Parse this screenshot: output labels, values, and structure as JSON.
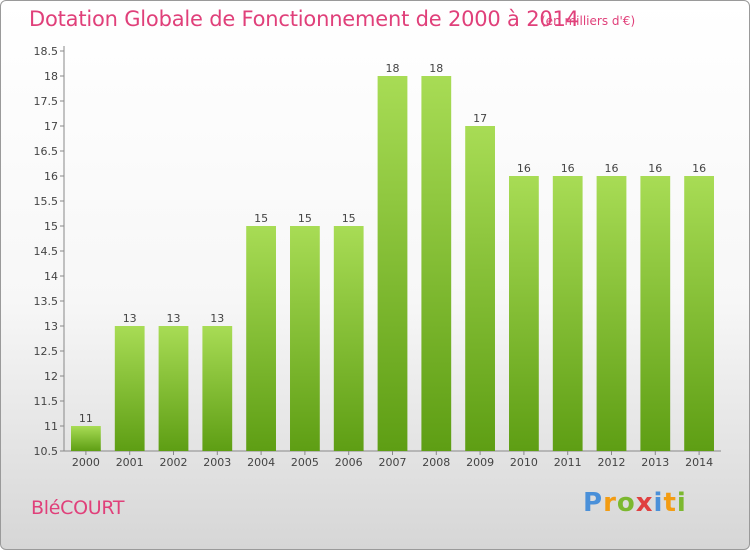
{
  "title": "Dotation Globale de Fonctionnement de 2000 à 2014",
  "unit": "(en milliers d'€)",
  "commune": "BléCOURT",
  "logo": "Proxiti",
  "colors": {
    "title": "#e0407a",
    "bar_top": "#a8dc55",
    "bar_bottom": "#5e9e14"
  },
  "chart_data": {
    "type": "bar",
    "categories": [
      "2000",
      "2001",
      "2002",
      "2003",
      "2004",
      "2005",
      "2006",
      "2007",
      "2008",
      "2009",
      "2010",
      "2011",
      "2012",
      "2013",
      "2014"
    ],
    "values": [
      11,
      13,
      13,
      13,
      15,
      15,
      15,
      18,
      18,
      17,
      16,
      16,
      16,
      16,
      16
    ],
    "ylim": [
      10.5,
      18.5
    ],
    "yticks": [
      "10.5",
      "11",
      "11.5",
      "12",
      "12.5",
      "13",
      "13.5",
      "14",
      "14.5",
      "15",
      "15.5",
      "16",
      "16.5",
      "17",
      "17.5",
      "18",
      "18.5"
    ],
    "grid": false
  }
}
